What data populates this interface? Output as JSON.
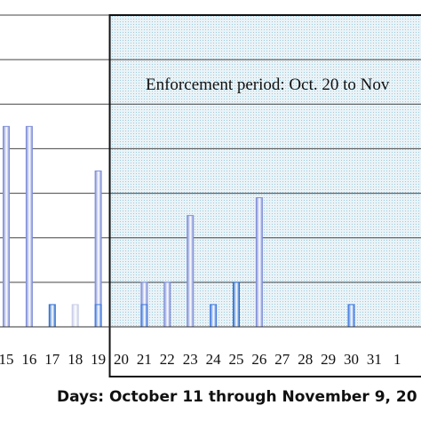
{
  "chart_data": {
    "type": "bar",
    "xlabel": "Days: October 11 through November 9, 20",
    "annotation": "Enforcement period: Oct. 20 to Nov",
    "categories": [
      "15",
      "16",
      "17",
      "18",
      "19",
      "20",
      "21",
      "22",
      "23",
      "24",
      "25",
      "26",
      "27",
      "28",
      "29",
      "30",
      "31",
      "1"
    ],
    "ylim": [
      0,
      7
    ],
    "grid": true,
    "enforcement_range": [
      "20",
      "1"
    ],
    "series": [
      {
        "color": "#7f8fd8",
        "values": [
          4.5,
          4.5,
          0,
          0,
          3.5,
          0,
          1,
          1,
          2.5,
          0,
          0,
          2.9,
          0,
          0,
          0,
          0,
          0,
          0
        ]
      },
      {
        "color": "#2f6fd0",
        "values": [
          0,
          0,
          0.5,
          0,
          0,
          0,
          0,
          0,
          0,
          0,
          1,
          0,
          0,
          0,
          0,
          0,
          0,
          0
        ]
      },
      {
        "color": "#c9cde8",
        "values": [
          0,
          0,
          0,
          0.5,
          0,
          0,
          0,
          0,
          0,
          0,
          0,
          0,
          0,
          0,
          0,
          0,
          0,
          0
        ]
      },
      {
        "color": "#3f78e0",
        "values": [
          0,
          0,
          0,
          0,
          0.5,
          0,
          0.5,
          0,
          0,
          0.5,
          0,
          0,
          0,
          0,
          0,
          0.5,
          0,
          0
        ]
      }
    ],
    "colors": {
      "grid": "#444444",
      "border": "#111111",
      "panel": "#eaf3f7",
      "stripe": "#9ccadf"
    }
  }
}
